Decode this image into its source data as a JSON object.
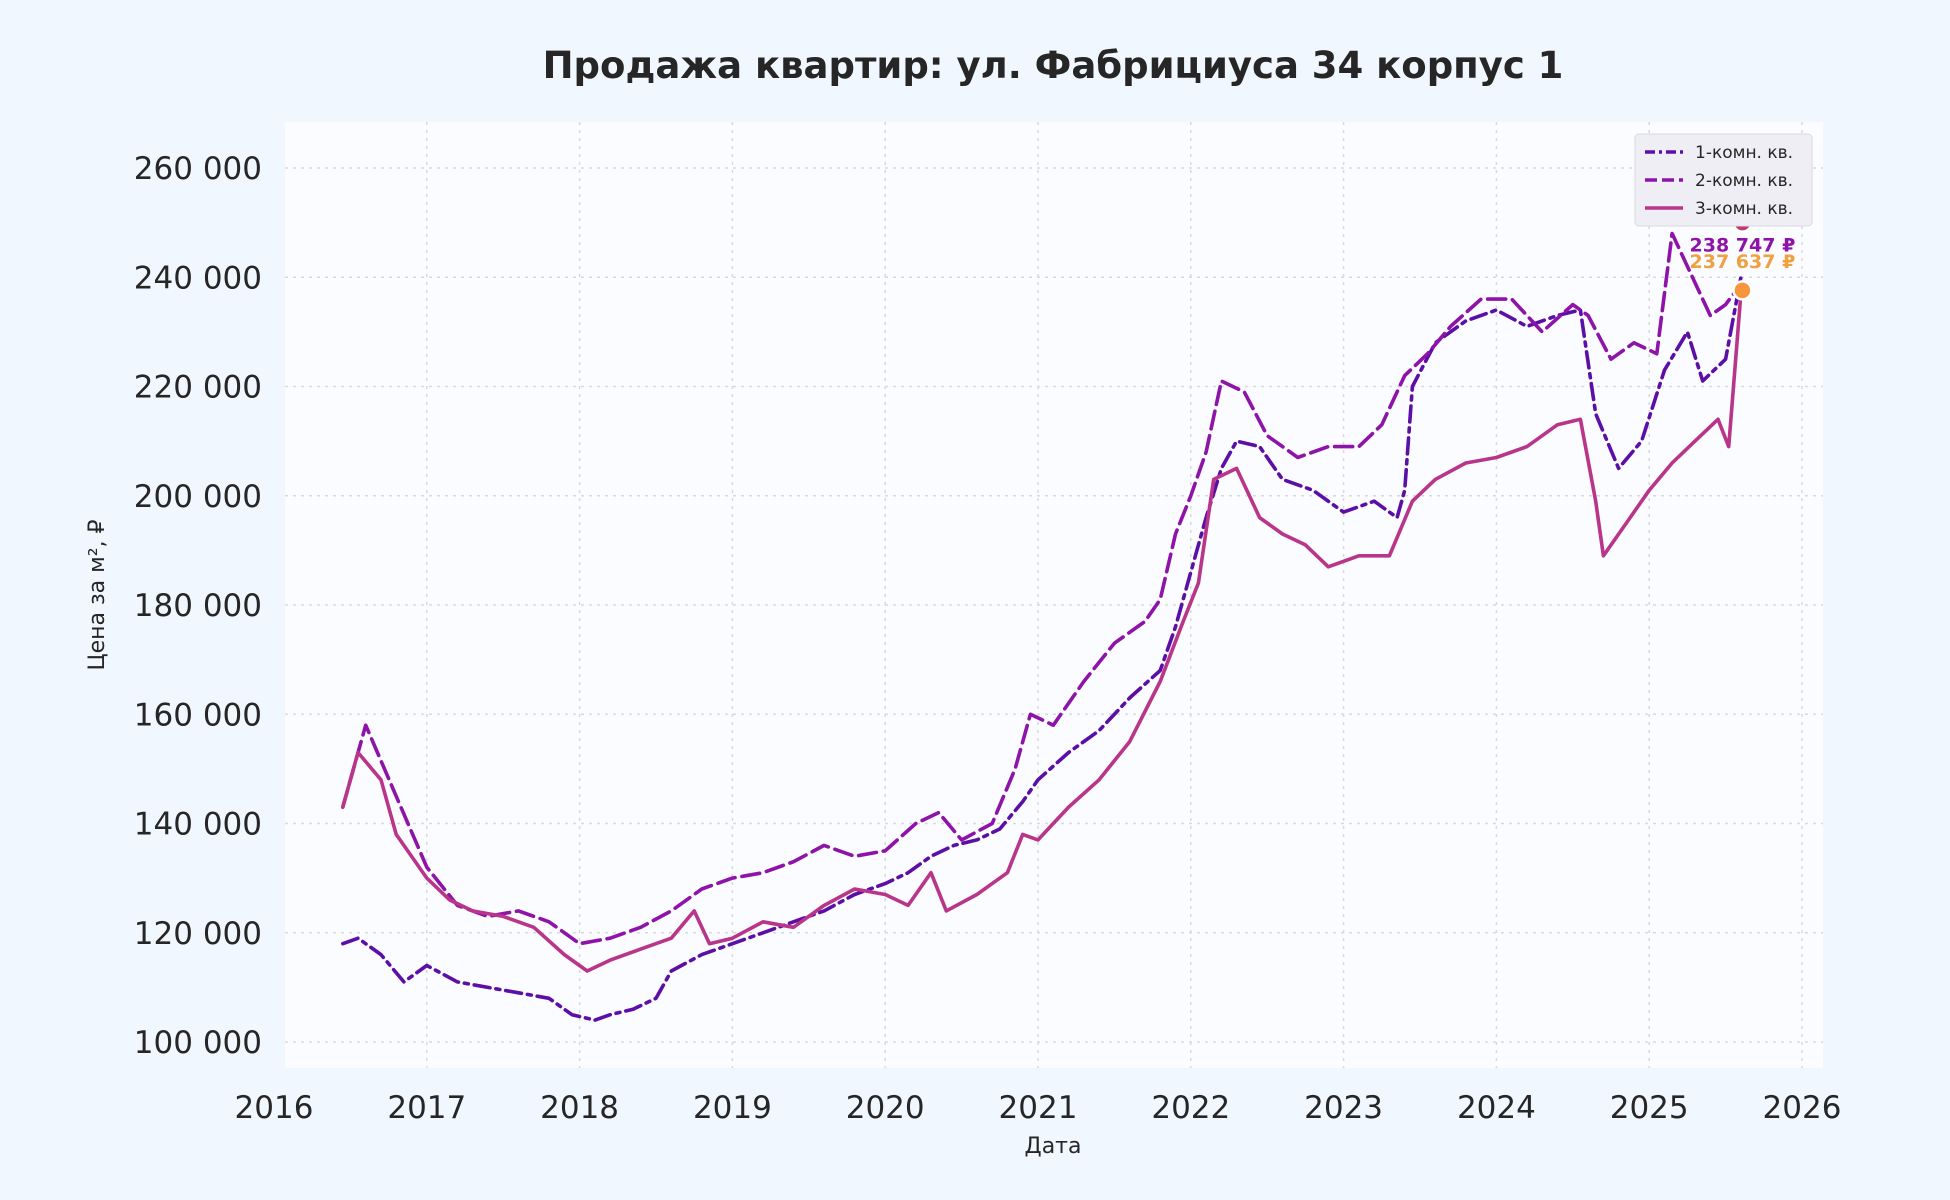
{
  "chart_data": {
    "type": "line",
    "title": "Продажа квартир: ул. Фабрициуса 34 корпус 1",
    "xlabel": "Дата",
    "ylabel": "Цена за м², ₽",
    "xlim": [
      2016.0,
      2026.0
    ],
    "ylim": [
      95000,
      269000
    ],
    "x_ticks": [
      "2016",
      "2017",
      "2018",
      "2019",
      "2020",
      "2021",
      "2022",
      "2023",
      "2024",
      "2025",
      "2026"
    ],
    "y_ticks": [
      "100 000",
      "120 000",
      "140 000",
      "160 000",
      "180 000",
      "200 000",
      "220 000",
      "240 000",
      "260 000"
    ],
    "grid": true,
    "legend_position": "top-right",
    "series": [
      {
        "name": "1-комн. кв.",
        "color": "#5b0fa6",
        "dash": "dashdot",
        "points": [
          [
            2016.45,
            118000
          ],
          [
            2016.55,
            119000
          ],
          [
            2016.7,
            116000
          ],
          [
            2016.85,
            111000
          ],
          [
            2017.0,
            114000
          ],
          [
            2017.2,
            111000
          ],
          [
            2017.4,
            110000
          ],
          [
            2017.6,
            109000
          ],
          [
            2017.8,
            108000
          ],
          [
            2017.95,
            105000
          ],
          [
            2018.1,
            104000
          ],
          [
            2018.2,
            105000
          ],
          [
            2018.35,
            106000
          ],
          [
            2018.5,
            108000
          ],
          [
            2018.6,
            113000
          ],
          [
            2018.8,
            116000
          ],
          [
            2019.0,
            118000
          ],
          [
            2019.2,
            120000
          ],
          [
            2019.4,
            122000
          ],
          [
            2019.6,
            124000
          ],
          [
            2019.8,
            127000
          ],
          [
            2020.0,
            129000
          ],
          [
            2020.15,
            131000
          ],
          [
            2020.3,
            134000
          ],
          [
            2020.45,
            136000
          ],
          [
            2020.6,
            137000
          ],
          [
            2020.75,
            139000
          ],
          [
            2020.9,
            144000
          ],
          [
            2021.0,
            148000
          ],
          [
            2021.2,
            153000
          ],
          [
            2021.4,
            157000
          ],
          [
            2021.6,
            163000
          ],
          [
            2021.8,
            168000
          ],
          [
            2021.9,
            176000
          ],
          [
            2022.0,
            186000
          ],
          [
            2022.1,
            196000
          ],
          [
            2022.2,
            205000
          ],
          [
            2022.3,
            210000
          ],
          [
            2022.45,
            209000
          ],
          [
            2022.6,
            203000
          ],
          [
            2022.8,
            201000
          ],
          [
            2023.0,
            197000
          ],
          [
            2023.2,
            199000
          ],
          [
            2023.35,
            196000
          ],
          [
            2023.4,
            201000
          ],
          [
            2023.45,
            220000
          ],
          [
            2023.6,
            228000
          ],
          [
            2023.8,
            232000
          ],
          [
            2024.0,
            234000
          ],
          [
            2024.2,
            231000
          ],
          [
            2024.4,
            233000
          ],
          [
            2024.55,
            234000
          ],
          [
            2024.65,
            215000
          ],
          [
            2024.8,
            205000
          ],
          [
            2024.95,
            210000
          ],
          [
            2025.1,
            223000
          ],
          [
            2025.25,
            230000
          ],
          [
            2025.35,
            221000
          ],
          [
            2025.5,
            225000
          ],
          [
            2025.6,
            240000
          ]
        ]
      },
      {
        "name": "2-комн. кв.",
        "color": "#8e13a8",
        "dash": "dashed",
        "points": [
          [
            2016.45,
            143000
          ],
          [
            2016.6,
            158000
          ],
          [
            2016.8,
            145000
          ],
          [
            2017.0,
            132000
          ],
          [
            2017.2,
            125000
          ],
          [
            2017.4,
            123000
          ],
          [
            2017.6,
            124000
          ],
          [
            2017.8,
            122000
          ],
          [
            2018.0,
            118000
          ],
          [
            2018.2,
            119000
          ],
          [
            2018.4,
            121000
          ],
          [
            2018.6,
            124000
          ],
          [
            2018.8,
            128000
          ],
          [
            2019.0,
            130000
          ],
          [
            2019.2,
            131000
          ],
          [
            2019.4,
            133000
          ],
          [
            2019.6,
            136000
          ],
          [
            2019.8,
            134000
          ],
          [
            2020.0,
            135000
          ],
          [
            2020.2,
            140000
          ],
          [
            2020.35,
            142000
          ],
          [
            2020.5,
            137000
          ],
          [
            2020.7,
            140000
          ],
          [
            2020.85,
            150000
          ],
          [
            2020.95,
            160000
          ],
          [
            2021.1,
            158000
          ],
          [
            2021.3,
            166000
          ],
          [
            2021.5,
            173000
          ],
          [
            2021.7,
            177000
          ],
          [
            2021.8,
            181000
          ],
          [
            2021.9,
            193000
          ],
          [
            2022.0,
            200000
          ],
          [
            2022.1,
            208000
          ],
          [
            2022.2,
            221000
          ],
          [
            2022.35,
            219000
          ],
          [
            2022.5,
            211000
          ],
          [
            2022.7,
            207000
          ],
          [
            2022.9,
            209000
          ],
          [
            2023.1,
            209000
          ],
          [
            2023.25,
            213000
          ],
          [
            2023.4,
            222000
          ],
          [
            2023.55,
            226000
          ],
          [
            2023.7,
            231000
          ],
          [
            2023.9,
            236000
          ],
          [
            2024.1,
            236000
          ],
          [
            2024.3,
            230000
          ],
          [
            2024.5,
            235000
          ],
          [
            2024.6,
            233000
          ],
          [
            2024.75,
            225000
          ],
          [
            2024.9,
            228000
          ],
          [
            2025.05,
            226000
          ],
          [
            2025.15,
            248000
          ],
          [
            2025.3,
            239000
          ],
          [
            2025.4,
            233000
          ],
          [
            2025.5,
            235000
          ],
          [
            2025.6,
            238747
          ]
        ]
      },
      {
        "name": "3-комн. кв.",
        "color": "#b8358a",
        "dash": "solid",
        "points": [
          [
            2016.45,
            143000
          ],
          [
            2016.55,
            153000
          ],
          [
            2016.7,
            148000
          ],
          [
            2016.8,
            138000
          ],
          [
            2017.0,
            130000
          ],
          [
            2017.15,
            126000
          ],
          [
            2017.3,
            124000
          ],
          [
            2017.5,
            123000
          ],
          [
            2017.7,
            121000
          ],
          [
            2017.9,
            116000
          ],
          [
            2018.05,
            113000
          ],
          [
            2018.2,
            115000
          ],
          [
            2018.4,
            117000
          ],
          [
            2018.6,
            119000
          ],
          [
            2018.75,
            124000
          ],
          [
            2018.85,
            118000
          ],
          [
            2019.0,
            119000
          ],
          [
            2019.2,
            122000
          ],
          [
            2019.4,
            121000
          ],
          [
            2019.6,
            125000
          ],
          [
            2019.8,
            128000
          ],
          [
            2020.0,
            127000
          ],
          [
            2020.15,
            125000
          ],
          [
            2020.3,
            131000
          ],
          [
            2020.4,
            124000
          ],
          [
            2020.6,
            127000
          ],
          [
            2020.8,
            131000
          ],
          [
            2020.9,
            138000
          ],
          [
            2021.0,
            137000
          ],
          [
            2021.2,
            143000
          ],
          [
            2021.4,
            148000
          ],
          [
            2021.6,
            155000
          ],
          [
            2021.8,
            166000
          ],
          [
            2021.95,
            177000
          ],
          [
            2022.05,
            184000
          ],
          [
            2022.15,
            203000
          ],
          [
            2022.3,
            205000
          ],
          [
            2022.45,
            196000
          ],
          [
            2022.6,
            193000
          ],
          [
            2022.75,
            191000
          ],
          [
            2022.9,
            187000
          ],
          [
            2023.1,
            189000
          ],
          [
            2023.3,
            189000
          ],
          [
            2023.45,
            199000
          ],
          [
            2023.6,
            203000
          ],
          [
            2023.8,
            206000
          ],
          [
            2024.0,
            207000
          ],
          [
            2024.2,
            209000
          ],
          [
            2024.4,
            213000
          ],
          [
            2024.55,
            214000
          ],
          [
            2024.65,
            199000
          ],
          [
            2024.7,
            189000
          ],
          [
            2024.85,
            195000
          ],
          [
            2025.0,
            201000
          ],
          [
            2025.15,
            206000
          ],
          [
            2025.3,
            210000
          ],
          [
            2025.45,
            214000
          ],
          [
            2025.52,
            209000
          ],
          [
            2025.6,
            237000
          ]
        ]
      }
    ],
    "end_markers": [
      {
        "x": 2025.61,
        "y": 250000,
        "color": "#c13a6e"
      },
      {
        "x": 2025.61,
        "y": 237600,
        "color": "#f7953d"
      }
    ],
    "end_labels": [
      {
        "text": "238 747 ₽",
        "x": 2025.61,
        "y": 244700,
        "color": "#8e13a8"
      },
      {
        "text": "237 637 ₽",
        "x": 2025.61,
        "y": 241700,
        "color": "#f0a040"
      }
    ]
  }
}
